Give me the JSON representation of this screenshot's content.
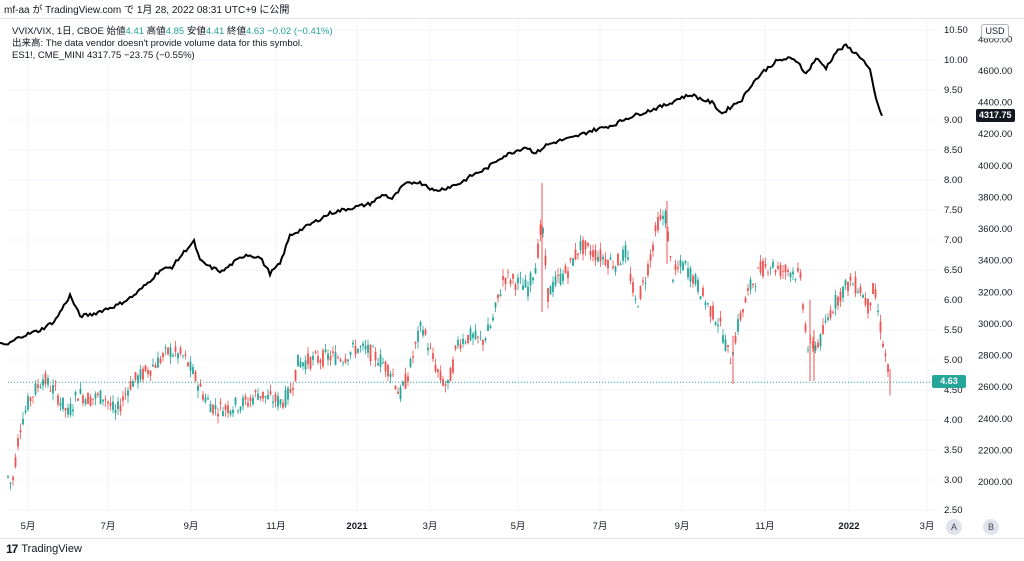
{
  "header": {
    "attribution": "mf-aa が TradingView.com で 1月 28, 2022 08:31 UTC+9 に公開"
  },
  "legend": {
    "main_symbol": "VVIX/VIX, 1日, CBOE",
    "open_label": "始値",
    "open_value": "4.41",
    "high_label": "高値",
    "high_value": "4.85",
    "low_label": "安値",
    "low_value": "4.41",
    "close_label": "終値",
    "close_value": "4.63",
    "change": "−0.02 (−0.41%)",
    "volume_note": "出来高: The data vendor doesn't provide volume data for this symbol.",
    "overlay_symbol": "ES1!, CME_MINI",
    "overlay_value": "4317.75",
    "overlay_change": "−23.75 (−0.55%)"
  },
  "currency_button": "USD",
  "price_tags": {
    "overlay_last": "4317.75",
    "main_last": "4.63"
  },
  "buttons": {
    "a": "A",
    "b": "B"
  },
  "logo_text": "TradingView",
  "colors": {
    "up": "#26a69a",
    "down": "#ef5350",
    "line": "#000000",
    "grid": "#f0f3fa"
  },
  "chart_data": {
    "type": "line",
    "x_ticks": [
      "5月",
      "7月",
      "9月",
      "11月",
      "2021",
      "3月",
      "5月",
      "7月",
      "9月",
      "11月",
      "2022",
      "3月"
    ],
    "left_axis": null,
    "right_axis_main": {
      "ticks": [
        "10.50",
        "10.00",
        "9.50",
        "9.00",
        "8.50",
        "8.00",
        "7.50",
        "7.00",
        "6.50",
        "6.00",
        "5.50",
        "5.00",
        "4.50",
        "4.00",
        "3.50",
        "3.00",
        "2.50"
      ],
      "ylim": [
        2.5,
        10.5
      ]
    },
    "right_axis_overlay": {
      "ticks": [
        "4800.00",
        "4600.00",
        "4400.00",
        "4200.00",
        "4000.00",
        "3800.00",
        "3600.00",
        "3400.00",
        "3200.00",
        "3000.00",
        "2800.00",
        "2600.00",
        "2400.00",
        "2200.00",
        "2000.00"
      ],
      "ylim": [
        1800,
        4800
      ]
    },
    "series": [
      {
        "name": "VVIX/VIX",
        "kind": "candlestick",
        "anchors": [
          [
            0,
            3.05
          ],
          [
            4,
            2.9
          ],
          [
            12,
            3.9
          ],
          [
            22,
            4.35
          ],
          [
            35,
            4.7
          ],
          [
            48,
            4.45
          ],
          [
            60,
            4.1
          ],
          [
            70,
            4.45
          ],
          [
            82,
            4.35
          ],
          [
            96,
            4.4
          ],
          [
            108,
            4.1
          ],
          [
            122,
            4.6
          ],
          [
            134,
            4.75
          ],
          [
            148,
            4.95
          ],
          [
            162,
            5.15
          ],
          [
            168,
            5.1
          ],
          [
            176,
            5.05
          ],
          [
            186,
            4.75
          ],
          [
            196,
            4.4
          ],
          [
            206,
            4.2
          ],
          [
            216,
            4.2
          ],
          [
            228,
            4.25
          ],
          [
            240,
            4.3
          ],
          [
            250,
            4.45
          ],
          [
            262,
            4.35
          ],
          [
            274,
            4.3
          ],
          [
            282,
            4.45
          ],
          [
            290,
            4.95
          ],
          [
            305,
            5.0
          ],
          [
            320,
            5.05
          ],
          [
            336,
            5.05
          ],
          [
            348,
            5.2
          ],
          [
            360,
            5.15
          ],
          [
            372,
            5.0
          ],
          [
            384,
            4.8
          ],
          [
            392,
            4.4
          ],
          [
            400,
            4.75
          ],
          [
            408,
            5.25
          ],
          [
            414,
            5.6
          ],
          [
            422,
            5.15
          ],
          [
            432,
            4.7
          ],
          [
            440,
            4.55
          ],
          [
            450,
            5.3
          ],
          [
            462,
            5.4
          ],
          [
            474,
            5.3
          ],
          [
            484,
            5.6
          ],
          [
            496,
            6.4
          ],
          [
            508,
            6.3
          ],
          [
            520,
            6.2
          ],
          [
            528,
            6.6
          ],
          [
            534,
            7.3
          ],
          [
            540,
            6.1
          ],
          [
            548,
            6.3
          ],
          [
            560,
            6.5
          ],
          [
            572,
            6.9
          ],
          [
            584,
            6.8
          ],
          [
            596,
            6.7
          ],
          [
            608,
            6.6
          ],
          [
            618,
            6.8
          ],
          [
            628,
            5.9
          ],
          [
            638,
            6.4
          ],
          [
            650,
            7.3
          ],
          [
            658,
            7.4
          ],
          [
            664,
            6.4
          ],
          [
            676,
            6.6
          ],
          [
            688,
            6.3
          ],
          [
            700,
            5.9
          ],
          [
            712,
            5.6
          ],
          [
            722,
            5.0
          ],
          [
            732,
            5.7
          ],
          [
            742,
            6.2
          ],
          [
            752,
            6.5
          ],
          [
            762,
            6.6
          ],
          [
            772,
            6.5
          ],
          [
            782,
            6.5
          ],
          [
            792,
            6.4
          ],
          [
            800,
            5.2
          ],
          [
            812,
            5.3
          ],
          [
            822,
            5.8
          ],
          [
            832,
            6.1
          ],
          [
            842,
            6.3
          ],
          [
            852,
            6.2
          ],
          [
            860,
            5.9
          ],
          [
            866,
            6.2
          ],
          [
            872,
            5.6
          ],
          [
            878,
            5.0
          ],
          [
            882,
            4.65
          ]
        ]
      },
      {
        "name": "ES1!",
        "kind": "line",
        "anchors": [
          [
            8,
            2870
          ],
          [
            20,
            2920
          ],
          [
            40,
            2960
          ],
          [
            55,
            3020
          ],
          [
            70,
            3180
          ],
          [
            80,
            3050
          ],
          [
            92,
            3060
          ],
          [
            104,
            3090
          ],
          [
            118,
            3120
          ],
          [
            134,
            3180
          ],
          [
            148,
            3260
          ],
          [
            160,
            3340
          ],
          [
            172,
            3360
          ],
          [
            186,
            3470
          ],
          [
            194,
            3520
          ],
          [
            200,
            3400
          ],
          [
            210,
            3360
          ],
          [
            222,
            3330
          ],
          [
            234,
            3390
          ],
          [
            246,
            3440
          ],
          [
            260,
            3420
          ],
          [
            270,
            3320
          ],
          [
            280,
            3380
          ],
          [
            290,
            3560
          ],
          [
            302,
            3600
          ],
          [
            316,
            3650
          ],
          [
            330,
            3700
          ],
          [
            342,
            3720
          ],
          [
            356,
            3740
          ],
          [
            370,
            3760
          ],
          [
            384,
            3820
          ],
          [
            392,
            3790
          ],
          [
            404,
            3880
          ],
          [
            416,
            3900
          ],
          [
            426,
            3880
          ],
          [
            434,
            3840
          ],
          [
            446,
            3860
          ],
          [
            460,
            3890
          ],
          [
            472,
            3940
          ],
          [
            486,
            3980
          ],
          [
            500,
            4050
          ],
          [
            514,
            4090
          ],
          [
            526,
            4120
          ],
          [
            536,
            4080
          ],
          [
            546,
            4130
          ],
          [
            560,
            4160
          ],
          [
            574,
            4180
          ],
          [
            590,
            4220
          ],
          [
            602,
            4240
          ],
          [
            614,
            4260
          ],
          [
            626,
            4300
          ],
          [
            640,
            4330
          ],
          [
            654,
            4360
          ],
          [
            668,
            4390
          ],
          [
            680,
            4430
          ],
          [
            692,
            4450
          ],
          [
            702,
            4420
          ],
          [
            712,
            4400
          ],
          [
            722,
            4330
          ],
          [
            732,
            4380
          ],
          [
            742,
            4420
          ],
          [
            752,
            4520
          ],
          [
            764,
            4600
          ],
          [
            776,
            4660
          ],
          [
            788,
            4680
          ],
          [
            798,
            4660
          ],
          [
            806,
            4580
          ],
          [
            816,
            4680
          ],
          [
            826,
            4620
          ],
          [
            836,
            4720
          ],
          [
            846,
            4760
          ],
          [
            854,
            4720
          ],
          [
            862,
            4680
          ],
          [
            870,
            4600
          ],
          [
            876,
            4420
          ],
          [
            882,
            4317
          ]
        ]
      }
    ]
  }
}
